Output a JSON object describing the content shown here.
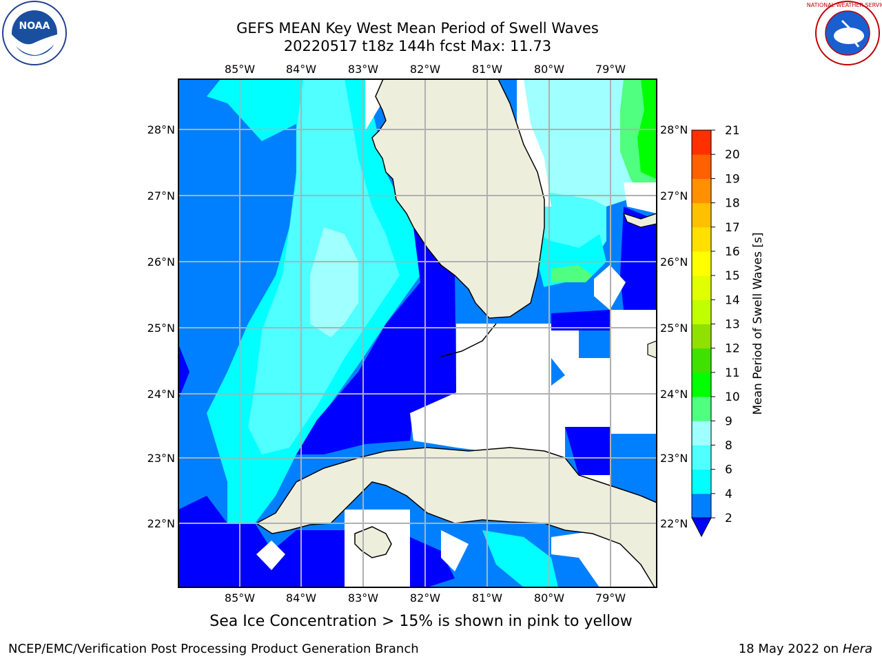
{
  "title": {
    "line1": "GEFS MEAN Key West Mean Period of Swell Waves",
    "line2": "20220517 t18z 144h fcst   Max: 11.73"
  },
  "map": {
    "lon_labels": [
      "85°W",
      "84°W",
      "83°W",
      "82°W",
      "81°W",
      "80°W",
      "79°W"
    ],
    "lat_labels": [
      "28°N",
      "27°N",
      "26°N",
      "25°N",
      "24°N",
      "23°N",
      "22°N"
    ],
    "colors": {
      "land": "#eeeedd",
      "gray_grid": "#b0b0b0"
    }
  },
  "colorbar": {
    "label": "Mean Period of Swell Waves [s]",
    "ticks": [
      "2",
      "4",
      "6",
      "8",
      "9",
      "10",
      "11",
      "12",
      "13",
      "14",
      "15",
      "16",
      "17",
      "18",
      "19",
      "20",
      "21"
    ],
    "colors": [
      "#0000ff",
      "#0080ff",
      "#00ffff",
      "#50ffff",
      "#a0ffff",
      "#50ff80",
      "#00ff00",
      "#40e000",
      "#90e000",
      "#c0ff00",
      "#e0ff00",
      "#ffff00",
      "#ffe000",
      "#ffc000",
      "#ff9000",
      "#ff6000",
      "#ff3000",
      "#ff0000"
    ]
  },
  "note": "Sea Ice Concentration > 15% is shown in pink to yellow",
  "footer": {
    "left": "NCEP/EMC/Verification Post Processing Product Generation Branch",
    "date": "18 May 2022 on",
    "machine": "Hera"
  },
  "logos": {
    "noaa_text": "NOAA",
    "nws_text": "NATIONAL WEATHER SERVICE"
  }
}
